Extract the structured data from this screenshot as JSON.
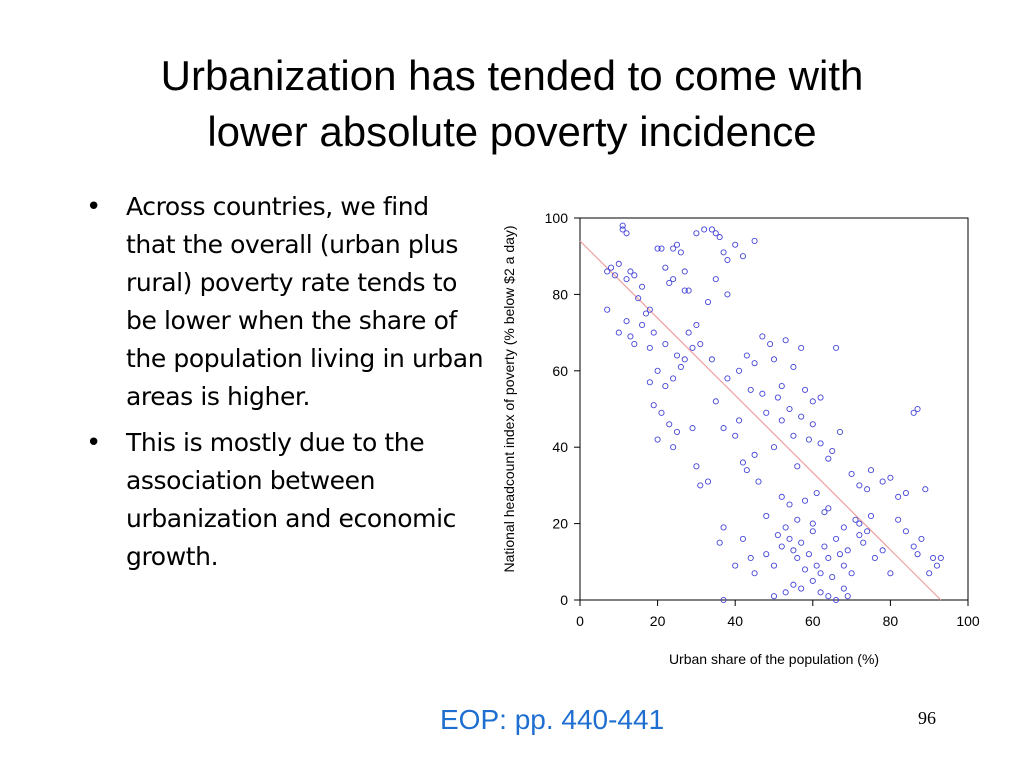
{
  "slide": {
    "title_line1": "Urbanization has tended to come with",
    "title_line2": "lower absolute poverty incidence",
    "bullets": [
      "Across countries, we find that the overall (urban plus rural) poverty rate tends to be lower when the share of the population living in urban areas is higher.",
      "This is mostly due to the association between urbanization and economic growth."
    ],
    "bullet_symbol": "•",
    "source": "EOP: pp. 440-441",
    "page_number": "96"
  },
  "colors": {
    "title": "#000000",
    "source_link": "#1f6fd1",
    "marker": "#4545d8",
    "fit_line": "#f0a0a0",
    "axis": "#000000"
  },
  "chart_data": {
    "type": "scatter",
    "title": "",
    "xlabel": "Urban share of the population (%)",
    "ylabel": "National headcount index of poverty (% below $2 a day)",
    "xlim": [
      0,
      100
    ],
    "ylim": [
      0,
      100
    ],
    "xticks": [
      0,
      20,
      40,
      60,
      80,
      100
    ],
    "yticks": [
      0,
      20,
      40,
      60,
      80,
      100
    ],
    "grid": false,
    "legend": "none",
    "marker": "open-circle",
    "fit_line": {
      "x": [
        0,
        93
      ],
      "y": [
        94,
        0
      ]
    },
    "points": [
      [
        7,
        86
      ],
      [
        8,
        87
      ],
      [
        9,
        85
      ],
      [
        10,
        88
      ],
      [
        11,
        97
      ],
      [
        11,
        98
      ],
      [
        12,
        96
      ],
      [
        12,
        84
      ],
      [
        13,
        86
      ],
      [
        14,
        85
      ],
      [
        15,
        79
      ],
      [
        16,
        82
      ],
      [
        17,
        75
      ],
      [
        18,
        76
      ],
      [
        18,
        66
      ],
      [
        20,
        92
      ],
      [
        21,
        92
      ],
      [
        22,
        87
      ],
      [
        23,
        83
      ],
      [
        24,
        84
      ],
      [
        24,
        92
      ],
      [
        25,
        93
      ],
      [
        26,
        91
      ],
      [
        27,
        86
      ],
      [
        27,
        81
      ],
      [
        28,
        81
      ],
      [
        30,
        96
      ],
      [
        32,
        97
      ],
      [
        34,
        97
      ],
      [
        35,
        96
      ],
      [
        36,
        95
      ],
      [
        37,
        91
      ],
      [
        38,
        89
      ],
      [
        40,
        93
      ],
      [
        42,
        90
      ],
      [
        45,
        94
      ],
      [
        7,
        76
      ],
      [
        10,
        70
      ],
      [
        12,
        73
      ],
      [
        13,
        69
      ],
      [
        14,
        67
      ],
      [
        16,
        72
      ],
      [
        19,
        70
      ],
      [
        22,
        67
      ],
      [
        25,
        64
      ],
      [
        28,
        70
      ],
      [
        30,
        72
      ],
      [
        33,
        78
      ],
      [
        35,
        84
      ],
      [
        38,
        80
      ],
      [
        20,
        60
      ],
      [
        22,
        56
      ],
      [
        24,
        58
      ],
      [
        26,
        61
      ],
      [
        27,
        63
      ],
      [
        29,
        66
      ],
      [
        31,
        67
      ],
      [
        34,
        63
      ],
      [
        18,
        57
      ],
      [
        19,
        51
      ],
      [
        21,
        49
      ],
      [
        23,
        46
      ],
      [
        25,
        44
      ],
      [
        20,
        42
      ],
      [
        24,
        40
      ],
      [
        29,
        45
      ],
      [
        30,
        35
      ],
      [
        31,
        30
      ],
      [
        33,
        31
      ],
      [
        35,
        52
      ],
      [
        38,
        58
      ],
      [
        41,
        60
      ],
      [
        43,
        64
      ],
      [
        45,
        62
      ],
      [
        47,
        69
      ],
      [
        49,
        67
      ],
      [
        50,
        63
      ],
      [
        52,
        56
      ],
      [
        53,
        68
      ],
      [
        55,
        61
      ],
      [
        57,
        66
      ],
      [
        58,
        55
      ],
      [
        60,
        52
      ],
      [
        62,
        53
      ],
      [
        66,
        66
      ],
      [
        37,
        45
      ],
      [
        40,
        43
      ],
      [
        42,
        36
      ],
      [
        43,
        34
      ],
      [
        45,
        38
      ],
      [
        46,
        31
      ],
      [
        48,
        49
      ],
      [
        50,
        40
      ],
      [
        52,
        47
      ],
      [
        54,
        50
      ],
      [
        55,
        43
      ],
      [
        57,
        48
      ],
      [
        59,
        42
      ],
      [
        60,
        46
      ],
      [
        62,
        41
      ],
      [
        64,
        37
      ],
      [
        65,
        39
      ],
      [
        67,
        44
      ],
      [
        70,
        33
      ],
      [
        72,
        30
      ],
      [
        74,
        29
      ],
      [
        75,
        34
      ],
      [
        78,
        31
      ],
      [
        80,
        32
      ],
      [
        82,
        27
      ],
      [
        84,
        28
      ],
      [
        86,
        49
      ],
      [
        87,
        50
      ],
      [
        89,
        29
      ],
      [
        41,
        47
      ],
      [
        44,
        55
      ],
      [
        47,
        54
      ],
      [
        51,
        53
      ],
      [
        54,
        25
      ],
      [
        56,
        35
      ],
      [
        58,
        26
      ],
      [
        61,
        28
      ],
      [
        63,
        23
      ],
      [
        36,
        15
      ],
      [
        37,
        19
      ],
      [
        40,
        9
      ],
      [
        42,
        16
      ],
      [
        44,
        11
      ],
      [
        45,
        7
      ],
      [
        48,
        12
      ],
      [
        50,
        9
      ],
      [
        51,
        17
      ],
      [
        52,
        14
      ],
      [
        53,
        19
      ],
      [
        54,
        16
      ],
      [
        55,
        13
      ],
      [
        56,
        11
      ],
      [
        57,
        15
      ],
      [
        58,
        8
      ],
      [
        59,
        12
      ],
      [
        60,
        18
      ],
      [
        61,
        9
      ],
      [
        62,
        7
      ],
      [
        63,
        14
      ],
      [
        64,
        11
      ],
      [
        65,
        6
      ],
      [
        66,
        16
      ],
      [
        67,
        12
      ],
      [
        68,
        9
      ],
      [
        69,
        13
      ],
      [
        70,
        7
      ],
      [
        71,
        21
      ],
      [
        72,
        17
      ],
      [
        73,
        15
      ],
      [
        75,
        22
      ],
      [
        76,
        11
      ],
      [
        78,
        13
      ],
      [
        80,
        7
      ],
      [
        82,
        21
      ],
      [
        84,
        18
      ],
      [
        86,
        14
      ],
      [
        87,
        12
      ],
      [
        88,
        16
      ],
      [
        90,
        7
      ],
      [
        91,
        11
      ],
      [
        92,
        9
      ],
      [
        93,
        11
      ],
      [
        37,
        0
      ],
      [
        50,
        1
      ],
      [
        53,
        2
      ],
      [
        55,
        4
      ],
      [
        57,
        3
      ],
      [
        60,
        5
      ],
      [
        62,
        2
      ],
      [
        64,
        1
      ],
      [
        66,
        0
      ],
      [
        68,
        3
      ],
      [
        69,
        1
      ],
      [
        48,
        22
      ],
      [
        52,
        27
      ],
      [
        56,
        21
      ],
      [
        60,
        20
      ],
      [
        64,
        24
      ],
      [
        68,
        19
      ],
      [
        72,
        20
      ],
      [
        74,
        18
      ]
    ]
  }
}
